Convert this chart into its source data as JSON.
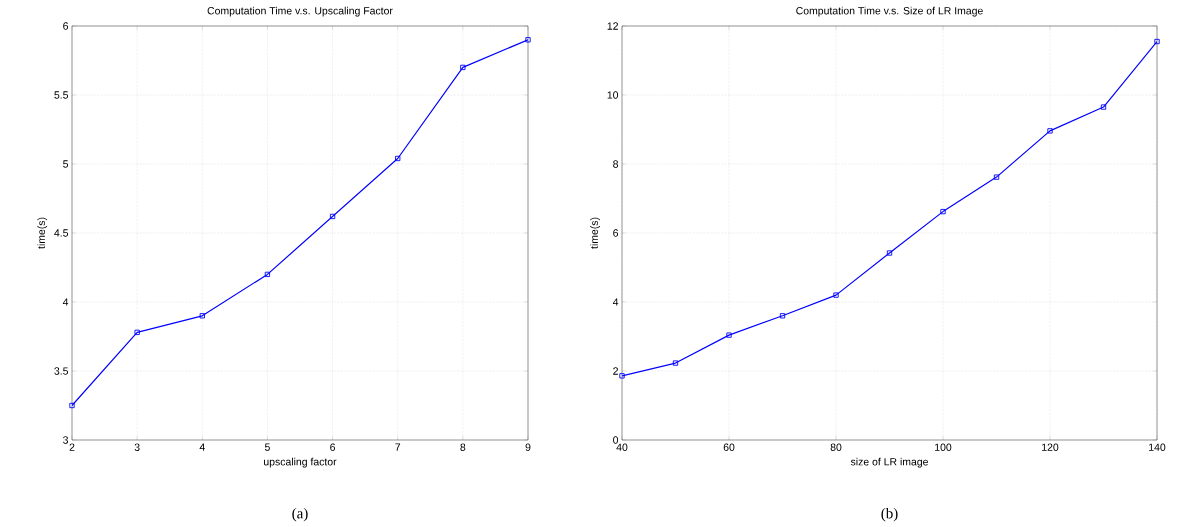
{
  "chart_data": [
    {
      "type": "line",
      "title": "Computation Time v.s. Upscaling Factor",
      "xlabel": "upscaling factor",
      "ylabel": "time(s)",
      "annotations": [
        "(a)"
      ],
      "x": [
        2,
        3,
        4,
        5,
        6,
        7,
        8,
        9
      ],
      "series": [
        {
          "color": "#0000ff",
          "values": [
            3.25,
            3.78,
            3.9,
            4.2,
            4.62,
            5.04,
            5.7,
            5.9
          ]
        }
      ],
      "xlim": [
        2,
        9
      ],
      "ylim": [
        3,
        6
      ],
      "xticks": [
        2,
        3,
        4,
        5,
        6,
        7,
        8,
        9
      ],
      "yticks": [
        3,
        3.5,
        4,
        4.5,
        5,
        5.5,
        6
      ],
      "grid": true,
      "marker": "square",
      "line_style": "solid"
    },
    {
      "type": "line",
      "title": "Computation Time v.s. Size of LR Image",
      "xlabel": "size of LR image",
      "ylabel": "time(s)",
      "annotations": [
        "(b)"
      ],
      "x": [
        40,
        50,
        60,
        70,
        80,
        90,
        100,
        110,
        120,
        130,
        140
      ],
      "series": [
        {
          "color": "#0000ff",
          "values": [
            1.86,
            2.23,
            3.04,
            3.6,
            4.2,
            5.42,
            6.62,
            7.62,
            8.96,
            9.65,
            11.55
          ]
        }
      ],
      "xlim": [
        40,
        140
      ],
      "ylim": [
        0,
        12
      ],
      "xticks": [
        40,
        60,
        80,
        100,
        120,
        140
      ],
      "yticks": [
        0,
        2,
        4,
        6,
        8,
        10,
        12
      ],
      "grid": true,
      "marker": "square",
      "line_style": "solid"
    }
  ]
}
